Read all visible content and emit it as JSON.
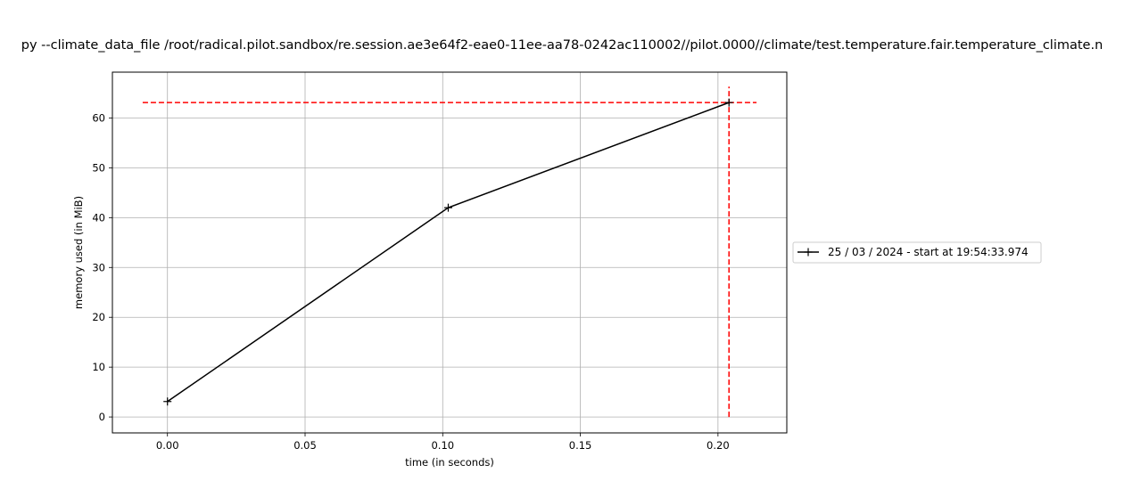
{
  "chart_data": {
    "type": "line",
    "title": "py --climate_data_file /root/radical.pilot.sandbox/re.session.ae3e64f2-eae0-11ee-aa78-0242ac110002//pilot.0000//climate/test.temperature.fair.temperature_climate.n",
    "xlabel": "time (in seconds)",
    "ylabel": "memory used (in MiB)",
    "xlim": [
      -0.02,
      0.225
    ],
    "ylim": [
      -3.2,
      69.2
    ],
    "x_ticks": [
      0.0,
      0.05,
      0.1,
      0.15,
      0.2
    ],
    "x_tick_labels": [
      "0.00",
      "0.05",
      "0.10",
      "0.15",
      "0.20"
    ],
    "y_ticks": [
      0,
      10,
      20,
      30,
      40,
      50,
      60
    ],
    "y_tick_labels": [
      "0",
      "10",
      "20",
      "30",
      "40",
      "50",
      "60"
    ],
    "grid": true,
    "legend_placement": "center-right-outside",
    "series": [
      {
        "name": "25 / 03 / 2024 - start at 19:54:33.974",
        "color": "#000000",
        "marker": "plus",
        "x": [
          0.0,
          0.102,
          0.204
        ],
        "y": [
          3.1,
          42.0,
          63.1
        ]
      }
    ],
    "reference_lines": [
      {
        "orientation": "horizontal",
        "value": 63.1,
        "color": "#ff0000",
        "style": "dashed",
        "range": [
          -0.009,
          0.214
        ]
      },
      {
        "orientation": "vertical",
        "value": 0.204,
        "color": "#ff0000",
        "style": "dashed",
        "range": [
          0,
          66.3
        ]
      }
    ]
  }
}
